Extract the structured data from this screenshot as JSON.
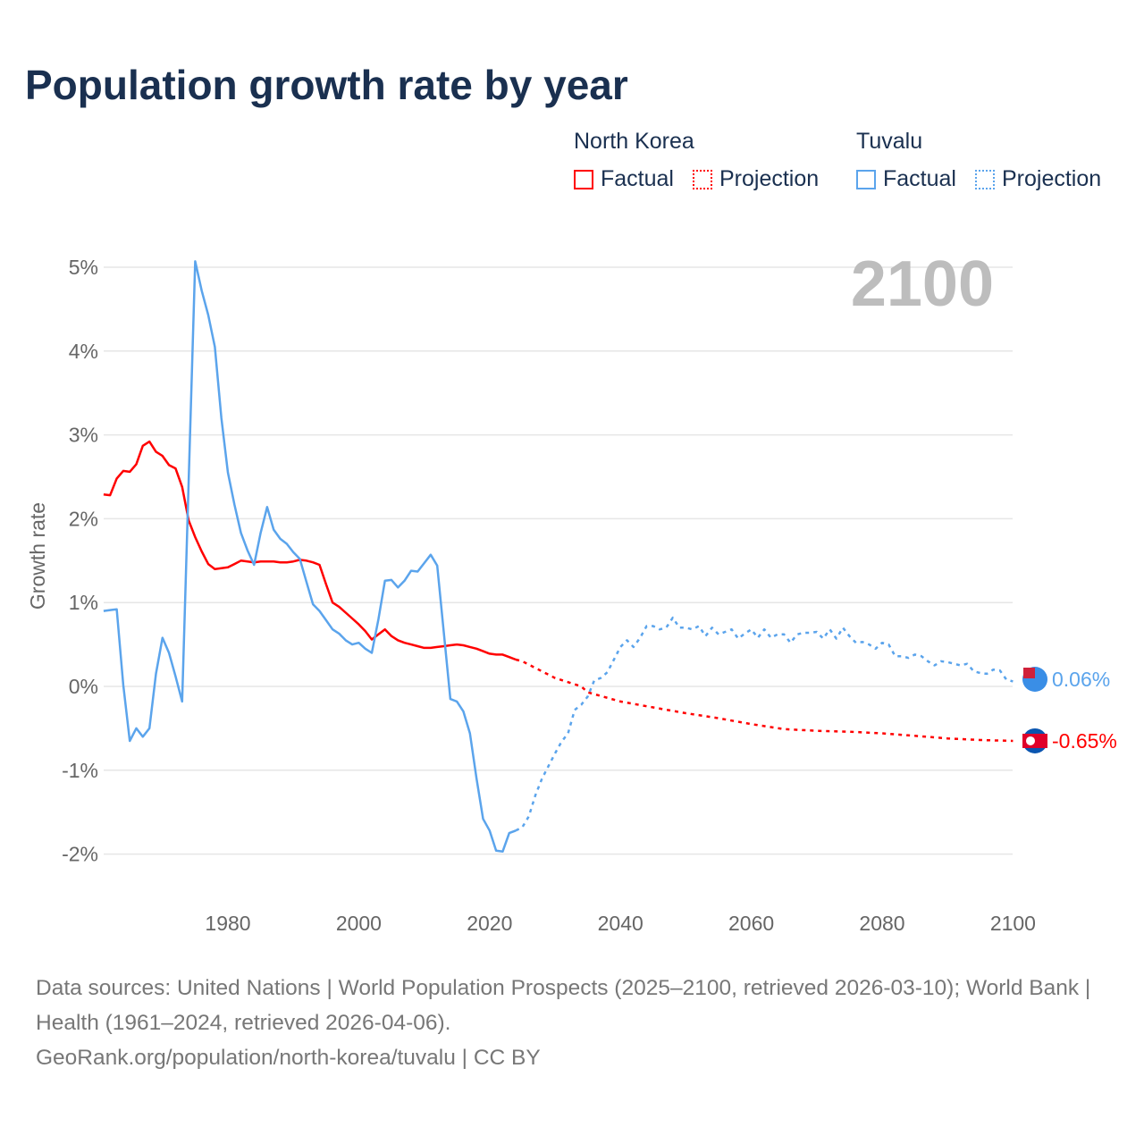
{
  "title": "Population growth rate by year",
  "legend": {
    "groups": [
      {
        "name": "North Korea",
        "factual": "Factual",
        "projection": "Projection",
        "color": "#ff0000"
      },
      {
        "name": "Tuvalu",
        "factual": "Factual",
        "projection": "Projection",
        "color": "#5ba4ec"
      }
    ]
  },
  "year_watermark": "2100",
  "footer": {
    "sources": "Data sources: United Nations | World Population Prospects (2025–2100, retrieved 2026-03-10); World Bank | Health (1961–2024, retrieved 2026-04-06).",
    "link": "GeoRank.org/population/north-korea/tuvalu | CC BY"
  },
  "chart_data": {
    "type": "line",
    "title": "Population growth rate by year",
    "xlabel": "",
    "ylabel": "Growth rate",
    "xlim": [
      1961,
      2100
    ],
    "ylim": [
      -2.5,
      5.2
    ],
    "xticks": [
      1980,
      2000,
      2020,
      2040,
      2060,
      2080,
      2100
    ],
    "xtick_labels": [
      "1980",
      "2000",
      "2020",
      "2040",
      "2060",
      "2080",
      "2100"
    ],
    "yticks": [
      -2,
      -1,
      0,
      1,
      2,
      3,
      4,
      5
    ],
    "ytick_labels": [
      "-2%",
      "-1%",
      "0%",
      "1%",
      "2%",
      "3%",
      "4%",
      "5%"
    ],
    "grid": true,
    "series": [
      {
        "name": "North Korea Factual",
        "style": "solid",
        "color": "#ff0000",
        "x_start": 1961,
        "values": [
          2.29,
          2.28,
          2.48,
          2.57,
          2.56,
          2.65,
          2.87,
          2.92,
          2.8,
          2.75,
          2.64,
          2.6,
          2.38,
          1.98,
          1.78,
          1.61,
          1.46,
          1.4,
          1.41,
          1.42,
          1.46,
          1.5,
          1.49,
          1.48,
          1.49,
          1.49,
          1.49,
          1.48,
          1.48,
          1.49,
          1.51,
          1.5,
          1.48,
          1.45,
          1.22,
          1.0,
          0.95,
          0.88,
          0.81,
          0.74,
          0.66,
          0.56,
          0.62,
          0.68,
          0.6,
          0.55,
          0.52,
          0.5,
          0.48,
          0.46,
          0.46,
          0.47,
          0.48,
          0.49,
          0.5,
          0.49,
          0.47,
          0.45,
          0.42,
          0.39,
          0.38,
          0.38,
          0.35,
          0.32
        ]
      },
      {
        "name": "North Korea Projection",
        "style": "dotted",
        "color": "#ff0000",
        "x": [
          2024,
          2025,
          2030,
          2034,
          2035,
          2040,
          2045,
          2050,
          2055,
          2060,
          2065,
          2070,
          2075,
          2080,
          2085,
          2090,
          2095,
          2100
        ],
        "values": [
          0.32,
          0.3,
          0.1,
          0.0,
          -0.07,
          -0.18,
          -0.25,
          -0.32,
          -0.38,
          -0.45,
          -0.51,
          -0.53,
          -0.54,
          -0.56,
          -0.59,
          -0.62,
          -0.64,
          -0.65
        ]
      },
      {
        "name": "Tuvalu Factual",
        "style": "solid",
        "color": "#5ba4ec",
        "x_start": 1961,
        "values": [
          0.9,
          0.91,
          0.92,
          0.02,
          -0.65,
          -0.5,
          -0.6,
          -0.5,
          0.15,
          0.58,
          0.4,
          0.12,
          -0.18,
          2.45,
          5.07,
          4.72,
          4.43,
          4.05,
          3.2,
          2.55,
          2.17,
          1.83,
          1.62,
          1.45,
          1.83,
          2.14,
          1.87,
          1.76,
          1.7,
          1.6,
          1.52,
          1.25,
          0.98,
          0.9,
          0.79,
          0.68,
          0.63,
          0.55,
          0.5,
          0.52,
          0.45,
          0.4,
          0.8,
          1.26,
          1.27,
          1.18,
          1.26,
          1.38,
          1.37,
          1.47,
          1.57,
          1.44,
          0.64,
          -0.15,
          -0.18,
          -0.3,
          -0.56,
          -1.1,
          -1.58,
          -1.72,
          -1.96,
          -1.97,
          -1.75,
          -1.72
        ]
      },
      {
        "name": "Tuvalu Projection",
        "style": "dotted",
        "color": "#5ba4ec",
        "x_start": 2024,
        "values": [
          -1.72,
          -1.68,
          -1.55,
          -1.3,
          -1.1,
          -0.95,
          -0.8,
          -0.66,
          -0.56,
          -0.28,
          -0.22,
          -0.12,
          0.07,
          0.1,
          0.17,
          0.32,
          0.47,
          0.55,
          0.47,
          0.58,
          0.72,
          0.72,
          0.68,
          0.7,
          0.82,
          0.7,
          0.7,
          0.68,
          0.72,
          0.6,
          0.7,
          0.62,
          0.65,
          0.68,
          0.57,
          0.63,
          0.68,
          0.58,
          0.68,
          0.58,
          0.62,
          0.62,
          0.52,
          0.62,
          0.64,
          0.64,
          0.65,
          0.57,
          0.68,
          0.57,
          0.7,
          0.6,
          0.52,
          0.53,
          0.5,
          0.45,
          0.52,
          0.5,
          0.36,
          0.36,
          0.34,
          0.38,
          0.36,
          0.3,
          0.25,
          0.3,
          0.29,
          0.27,
          0.25,
          0.27,
          0.18,
          0.16,
          0.15,
          0.2,
          0.19,
          0.08,
          0.06
        ]
      }
    ],
    "end_labels": [
      {
        "series": "Tuvalu",
        "text": "0.06%",
        "value": 0.06,
        "color": "#5ba4ec"
      },
      {
        "series": "North Korea",
        "text": "-0.65%",
        "value": -0.65,
        "color": "#ff0000"
      }
    ]
  }
}
